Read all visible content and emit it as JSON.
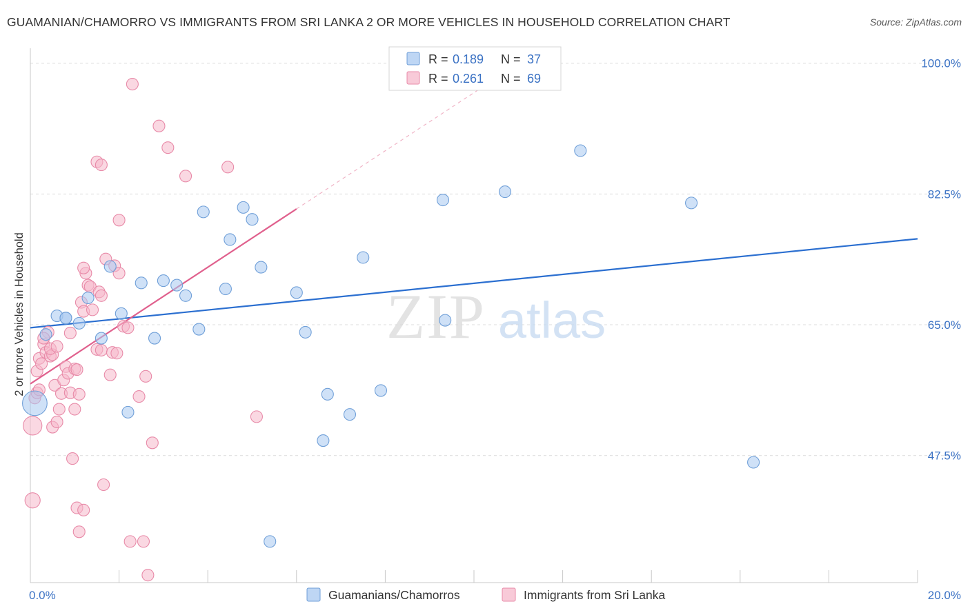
{
  "header": {
    "title": "GUAMANIAN/CHAMORRO VS IMMIGRANTS FROM SRI LANKA 2 OR MORE VEHICLES IN HOUSEHOLD CORRELATION CHART",
    "source": "Source: ZipAtlas.com"
  },
  "watermark": {
    "zip": "ZIP",
    "atlas": "atlas"
  },
  "legend_box": {
    "rows": [
      {
        "r_label": "R =",
        "r_value": "0.189",
        "n_label": "N =",
        "n_value": "37"
      },
      {
        "r_label": "R =",
        "r_value": "0.261",
        "n_label": "N =",
        "n_value": "69"
      }
    ]
  },
  "bottom_legend": {
    "items": [
      {
        "label": "Guamanians/Chamorros"
      },
      {
        "label": "Immigrants from Sri Lanka"
      }
    ]
  },
  "colors": {
    "blue_fill": "#a8c8f0",
    "blue_stroke": "#6f9fd8",
    "blue_line": "#2b6fd0",
    "pink_fill": "#f6b8cb",
    "pink_stroke": "#e88aa8",
    "pink_line": "#e0608d",
    "tick_text": "#3b72c4",
    "grid": "#dcdcdc"
  },
  "chart_data": {
    "type": "scatter",
    "title": "GUAMANIAN/CHAMORRO VS IMMIGRANTS FROM SRI LANKA 2 OR MORE VEHICLES IN HOUSEHOLD CORRELATION CHART",
    "xlabel": "",
    "ylabel": "2 or more Vehicles in Household",
    "xlim": [
      0,
      20
    ],
    "ylim": [
      30.5,
      102
    ],
    "x_tick_labels": [
      {
        "value": 0,
        "label": "0.0%"
      },
      {
        "value": 20,
        "label": "20.0%"
      }
    ],
    "y_tick_labels": [
      {
        "value": 100,
        "label": "100.0%"
      },
      {
        "value": 82.5,
        "label": "82.5%"
      },
      {
        "value": 65,
        "label": "65.0%"
      },
      {
        "value": 47.5,
        "label": "47.5%"
      }
    ],
    "series": [
      {
        "name": "Guamanians/Chamorros",
        "r": 0.189,
        "n": 37,
        "trend": {
          "x0": 0,
          "y0": 64.6,
          "x1": 20,
          "y1": 76.5
        },
        "points": [
          [
            0.1,
            54.5,
            2.1
          ],
          [
            0.35,
            63.7,
            1
          ],
          [
            0.6,
            66.2,
            1
          ],
          [
            0.8,
            65.9,
            1
          ],
          [
            1.1,
            65.2,
            1
          ],
          [
            1.3,
            68.6,
            1
          ],
          [
            1.6,
            63.2,
            1
          ],
          [
            1.8,
            72.8,
            1
          ],
          [
            2.05,
            66.5,
            1
          ],
          [
            2.2,
            53.3,
            1
          ],
          [
            2.5,
            70.6,
            1
          ],
          [
            2.8,
            63.2,
            1
          ],
          [
            3.0,
            70.9,
            1
          ],
          [
            3.3,
            70.3,
            1
          ],
          [
            3.5,
            68.9,
            1
          ],
          [
            3.8,
            64.4,
            1
          ],
          [
            3.9,
            80.1,
            1
          ],
          [
            4.4,
            69.8,
            1
          ],
          [
            4.5,
            76.4,
            1
          ],
          [
            4.8,
            80.7,
            1
          ],
          [
            5.0,
            79.1,
            1
          ],
          [
            5.2,
            72.7,
            1
          ],
          [
            5.4,
            36.0,
            1
          ],
          [
            6.0,
            69.3,
            1
          ],
          [
            6.2,
            64.0,
            1
          ],
          [
            6.6,
            49.5,
            1
          ],
          [
            6.7,
            55.7,
            1
          ],
          [
            7.2,
            53.0,
            1
          ],
          [
            7.5,
            74.0,
            1
          ],
          [
            7.9,
            56.2,
            1
          ],
          [
            9.3,
            81.7,
            1
          ],
          [
            9.35,
            65.6,
            1
          ],
          [
            10.7,
            82.8,
            1
          ],
          [
            12.4,
            88.3,
            1
          ],
          [
            14.9,
            81.3,
            1
          ],
          [
            16.3,
            46.6,
            1
          ],
          [
            0.8,
            65.9,
            1
          ]
        ]
      },
      {
        "name": "Immigrants from Sri Lanka",
        "r": 0.261,
        "n": 69,
        "trend": {
          "x0": 0,
          "y0": 57.1,
          "x1": 6.0,
          "y1": 80.5
        },
        "trend_extension": {
          "x0": 6.0,
          "y0": 80.5,
          "x1": 10.5,
          "y1": 98.0
        },
        "points": [
          [
            0.05,
            51.5,
            1.6
          ],
          [
            0.05,
            41.5,
            1.3
          ],
          [
            0.1,
            55.2,
            1
          ],
          [
            0.15,
            58.8,
            1
          ],
          [
            0.2,
            60.5,
            1
          ],
          [
            0.25,
            59.8,
            1
          ],
          [
            0.3,
            62.4,
            1
          ],
          [
            0.35,
            61.3,
            1
          ],
          [
            0.4,
            64.0,
            1
          ],
          [
            0.45,
            60.8,
            1
          ],
          [
            0.5,
            51.3,
            1
          ],
          [
            0.5,
            61.0,
            1
          ],
          [
            0.55,
            56.9,
            1
          ],
          [
            0.6,
            52.0,
            1
          ],
          [
            0.65,
            53.7,
            1
          ],
          [
            0.7,
            55.8,
            1
          ],
          [
            0.75,
            57.6,
            1
          ],
          [
            0.8,
            59.4,
            1
          ],
          [
            0.85,
            58.5,
            1
          ],
          [
            0.9,
            55.9,
            1
          ],
          [
            0.9,
            63.9,
            1
          ],
          [
            0.95,
            47.1,
            1
          ],
          [
            1.0,
            53.7,
            1
          ],
          [
            1.0,
            59.1,
            1
          ],
          [
            1.05,
            40.5,
            1
          ],
          [
            1.1,
            37.3,
            1
          ],
          [
            1.15,
            68.0,
            1
          ],
          [
            1.2,
            66.8,
            1
          ],
          [
            1.25,
            71.9,
            1
          ],
          [
            1.3,
            70.3,
            1
          ],
          [
            1.35,
            70.1,
            1
          ],
          [
            1.4,
            67.0,
            1
          ],
          [
            1.2,
            72.6,
            1
          ],
          [
            1.5,
            86.8,
            1
          ],
          [
            1.6,
            86.4,
            1
          ],
          [
            1.55,
            69.4,
            1
          ],
          [
            1.6,
            68.9,
            1
          ],
          [
            1.5,
            61.7,
            1
          ],
          [
            1.6,
            61.6,
            1
          ],
          [
            1.65,
            43.6,
            1
          ],
          [
            1.7,
            73.8,
            1
          ],
          [
            1.8,
            58.3,
            1
          ],
          [
            1.85,
            61.3,
            1
          ],
          [
            1.9,
            72.9,
            1
          ],
          [
            1.95,
            61.2,
            1
          ],
          [
            2.0,
            71.9,
            1
          ],
          [
            2.0,
            79.0,
            1
          ],
          [
            2.1,
            64.8,
            1
          ],
          [
            2.2,
            64.6,
            1
          ],
          [
            2.25,
            36.0,
            1
          ],
          [
            2.3,
            97.2,
            1
          ],
          [
            2.45,
            55.4,
            1
          ],
          [
            2.55,
            36.0,
            1
          ],
          [
            2.6,
            58.1,
            1
          ],
          [
            2.65,
            31.5,
            1
          ],
          [
            2.75,
            49.2,
            1
          ],
          [
            2.9,
            91.6,
            1
          ],
          [
            3.1,
            88.7,
            1
          ],
          [
            3.5,
            84.9,
            1
          ],
          [
            4.45,
            86.1,
            1
          ],
          [
            5.1,
            52.7,
            1
          ],
          [
            1.2,
            40.2,
            1
          ],
          [
            0.15,
            55.9,
            1
          ],
          [
            0.3,
            63.2,
            1
          ],
          [
            0.45,
            61.8,
            1
          ],
          [
            0.6,
            62.1,
            1
          ],
          [
            1.05,
            59.0,
            1
          ],
          [
            1.1,
            55.7,
            1
          ],
          [
            0.2,
            56.3,
            1
          ]
        ]
      }
    ]
  }
}
